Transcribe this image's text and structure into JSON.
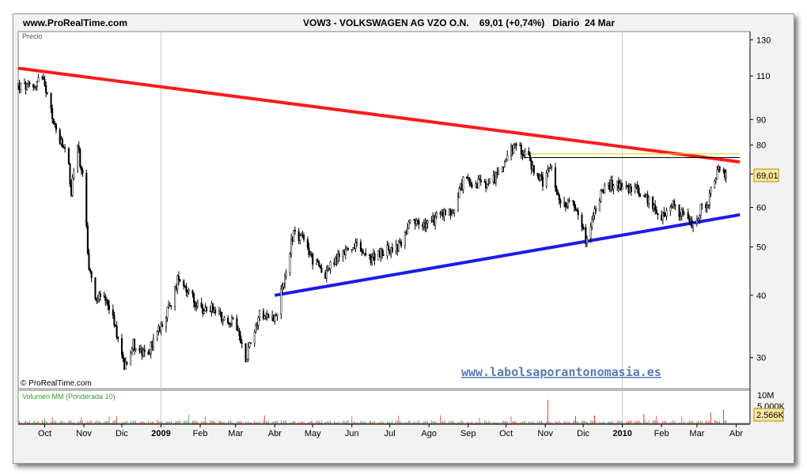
{
  "header": {
    "site": "www.ProRealTime.com",
    "title": "VOW3 - VOLKSWAGEN AG VZO O.N.    69,01 (+0,74%)   Diario  24 Mar"
  },
  "chart_data": {
    "type": "candlestick",
    "price_panel": {
      "label": "Precio",
      "scale": "log",
      "ylim": [
        26,
        135
      ],
      "yticks": [
        30,
        40,
        50,
        60,
        70,
        80,
        90,
        110,
        130
      ],
      "ytick_labels": {
        "30": "30",
        "40": "40",
        "50": "50",
        "60": "60",
        "70": "",
        "80": "80",
        "90": "90",
        "110": "110",
        "130": "130"
      },
      "last_price": 69.01,
      "last_price_label": "69,01",
      "watermark": "www.labolsaporantonomasia.es",
      "copyright": "© ProRealTime.com",
      "price_path": [
        [
          "2008-09-10",
          105
        ],
        [
          "2008-09-22",
          104
        ],
        [
          "2008-09-28",
          111
        ],
        [
          "2008-10-05",
          95
        ],
        [
          "2008-10-12",
          82
        ],
        [
          "2008-10-19",
          76
        ],
        [
          "2008-10-22",
          64
        ],
        [
          "2008-10-26",
          82
        ],
        [
          "2008-11-01",
          67
        ],
        [
          "2008-11-05",
          45
        ],
        [
          "2008-11-10",
          40
        ],
        [
          "2008-11-20",
          39
        ],
        [
          "2008-11-28",
          33
        ],
        [
          "2008-12-03",
          29
        ],
        [
          "2008-12-10",
          32
        ],
        [
          "2008-12-20",
          30
        ],
        [
          "2009-01-01",
          35
        ],
        [
          "2009-01-10",
          39
        ],
        [
          "2009-01-15",
          44
        ],
        [
          "2009-01-22",
          41
        ],
        [
          "2009-02-01",
          37
        ],
        [
          "2009-02-10",
          38
        ],
        [
          "2009-02-20",
          36
        ],
        [
          "2009-03-01",
          35
        ],
        [
          "2009-03-09",
          30
        ],
        [
          "2009-03-20",
          37
        ],
        [
          "2009-04-01",
          36
        ],
        [
          "2009-04-08",
          42
        ],
        [
          "2009-04-16",
          54
        ],
        [
          "2009-04-25",
          51
        ],
        [
          "2009-05-01",
          47
        ],
        [
          "2009-05-10",
          44
        ],
        [
          "2009-05-25",
          49
        ],
        [
          "2009-06-05",
          50
        ],
        [
          "2009-06-15",
          47
        ],
        [
          "2009-06-25",
          49
        ],
        [
          "2009-07-08",
          50
        ],
        [
          "2009-07-18",
          56
        ],
        [
          "2009-07-30",
          55
        ],
        [
          "2009-08-10",
          58
        ],
        [
          "2009-08-20",
          59
        ],
        [
          "2009-08-28",
          68
        ],
        [
          "2009-09-08",
          67
        ],
        [
          "2009-09-18",
          66
        ],
        [
          "2009-09-28",
          73
        ],
        [
          "2009-10-08",
          80
        ],
        [
          "2009-10-15",
          78
        ],
        [
          "2009-10-22",
          72
        ],
        [
          "2009-10-30",
          67
        ],
        [
          "2009-11-06",
          72
        ],
        [
          "2009-11-12",
          61
        ],
        [
          "2009-11-20",
          62
        ],
        [
          "2009-11-28",
          59
        ],
        [
          "2009-12-03",
          52
        ],
        [
          "2009-12-09",
          58
        ],
        [
          "2009-12-16",
          65
        ],
        [
          "2009-12-26",
          67
        ],
        [
          "2010-01-05",
          66
        ],
        [
          "2010-01-13",
          65
        ],
        [
          "2010-01-22",
          62
        ],
        [
          "2010-02-01",
          57
        ],
        [
          "2010-02-09",
          61
        ],
        [
          "2010-02-17",
          58
        ],
        [
          "2010-02-25",
          55
        ],
        [
          "2010-03-03",
          59
        ],
        [
          "2010-03-10",
          62
        ],
        [
          "2010-03-17",
          71
        ],
        [
          "2010-03-22",
          72
        ],
        [
          "2010-03-24",
          69.01
        ]
      ],
      "trendlines": [
        {
          "color": "#ff1a1a",
          "from": [
            "2008-09-10",
            114
          ],
          "to": [
            "2010-04-04",
            74
          ]
        },
        {
          "color": "#1a1aee",
          "from": [
            "2009-04-01",
            40
          ],
          "to": [
            "2010-04-04",
            58
          ]
        },
        {
          "color": "#d8d800",
          "from": [
            "2009-10-16",
            76.8
          ],
          "to": [
            "2010-04-04",
            76.8
          ]
        },
        {
          "color": "#000000",
          "from": [
            "2009-10-16",
            75.5
          ],
          "to": [
            "2010-04-04",
            75.5
          ]
        }
      ]
    },
    "volume_panel": {
      "label": "Volumen MM (Ponderada 10)",
      "yticks": [
        "10M",
        "5.000K"
      ],
      "last_value_label": "2.566K"
    },
    "x_axis": {
      "labels": [
        {
          "text": "Oct",
          "date": "2008-10-01"
        },
        {
          "text": "Nov",
          "date": "2008-11-01"
        },
        {
          "text": "Dic",
          "date": "2008-12-01"
        },
        {
          "text": "2009",
          "date": "2009-01-01",
          "bold": true
        },
        {
          "text": "Feb",
          "date": "2009-02-01"
        },
        {
          "text": "Mar",
          "date": "2009-03-01"
        },
        {
          "text": "Abr",
          "date": "2009-04-01"
        },
        {
          "text": "May",
          "date": "2009-05-01"
        },
        {
          "text": "Jun",
          "date": "2009-06-01"
        },
        {
          "text": "Jul",
          "date": "2009-07-01"
        },
        {
          "text": "Ago",
          "date": "2009-08-01"
        },
        {
          "text": "Sep",
          "date": "2009-09-01"
        },
        {
          "text": "Oct",
          "date": "2009-10-01"
        },
        {
          "text": "Nov",
          "date": "2009-11-01"
        },
        {
          "text": "Dic",
          "date": "2009-12-01"
        },
        {
          "text": "2010",
          "date": "2010-01-01",
          "bold": true
        },
        {
          "text": "Feb",
          "date": "2010-02-01"
        },
        {
          "text": "Mar",
          "date": "2010-03-01"
        },
        {
          "text": "Abr",
          "date": "2010-04-01"
        }
      ],
      "range": [
        "2008-09-10",
        "2010-04-12"
      ]
    },
    "colors": {
      "up": "#000000",
      "down": "#000000",
      "grid": "#c8c8c8",
      "volume": "#e83a3a",
      "volume_alt": "#4a9a4a"
    }
  }
}
